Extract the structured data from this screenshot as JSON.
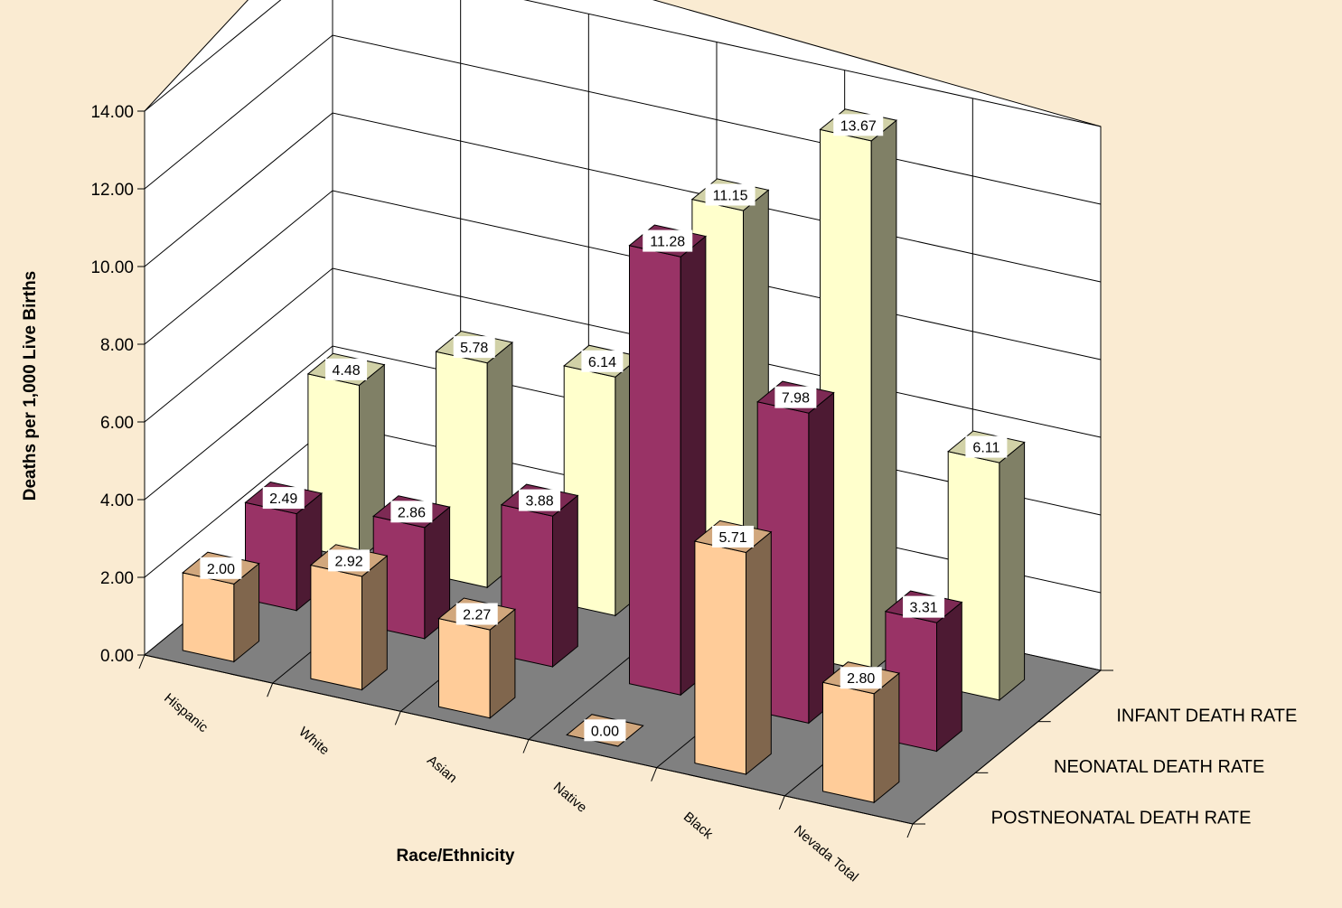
{
  "chart_data": {
    "type": "bar",
    "variant": "3d-clustered-depth",
    "categories": [
      "Hispanic",
      "White",
      "Asian",
      "Native",
      "Black",
      "Nevada Total"
    ],
    "series": [
      {
        "name": "POSTNEONATAL DEATH RATE",
        "values": [
          2.0,
          2.92,
          2.27,
          0.0,
          5.71,
          2.8
        ],
        "color": "#FFCC99"
      },
      {
        "name": "NEONATAL DEATH RATE",
        "values": [
          2.49,
          2.86,
          3.88,
          11.28,
          7.98,
          3.31
        ],
        "color": "#993366"
      },
      {
        "name": "INFANT DEATH RATE",
        "values": [
          4.48,
          5.78,
          6.14,
          11.15,
          13.67,
          6.11
        ],
        "color": "#FFFFCC"
      }
    ],
    "value_labels": [
      [
        "2.00",
        "2.92",
        "2.27",
        "0.00",
        "5.71",
        "2.80"
      ],
      [
        "2.49",
        "2.86",
        "3.88",
        "11.28",
        "7.98",
        "3.31"
      ],
      [
        "4.48",
        "5.78",
        "6.14",
        "11.15",
        "13.67",
        "6.11"
      ]
    ],
    "yticks": [
      "0.00",
      "2.00",
      "4.00",
      "6.00",
      "8.00",
      "10.00",
      "12.00",
      "14.00"
    ],
    "ylim": [
      0,
      14
    ],
    "title": "",
    "xlabel": "Race/Ethnicity",
    "ylabel": "Deaths per 1,000 Live Births",
    "grid": true,
    "legend": "series-axis-right",
    "colors": {
      "background": "#FAEBD2",
      "wall": "#FFFFFF",
      "floor": "#808080"
    }
  }
}
